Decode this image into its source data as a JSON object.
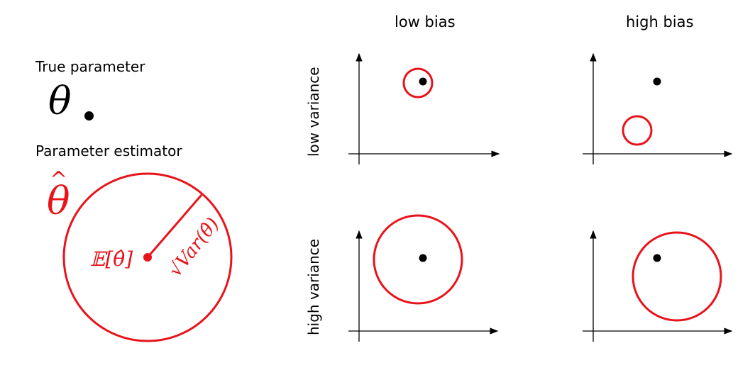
{
  "legend": {
    "true_parameter_label": "True parameter",
    "true_parameter_symbol": "θ",
    "estimator_label": "Parameter estimator",
    "estimator_symbol": "θ",
    "estimator_hat": "^",
    "mean_label": "𝔼[θ̂]",
    "variance_label": "√Var(θ̂)"
  },
  "grid": {
    "columns": [
      "low bias",
      "high bias"
    ],
    "rows": [
      "low variance",
      "high variance"
    ]
  },
  "colors": {
    "estimator": "#e8131b",
    "truth": "#000000",
    "axes": "#000000"
  }
}
